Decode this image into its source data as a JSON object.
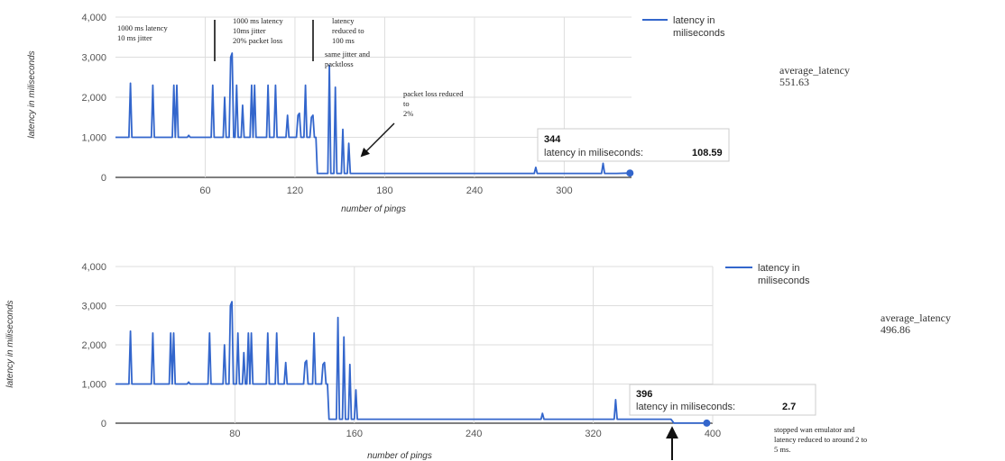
{
  "chart_data": [
    {
      "type": "line",
      "xlabel": "number of pings",
      "ylabel": "latency in miliseconds",
      "xlim": [
        0,
        345
      ],
      "ylim": [
        0,
        4000
      ],
      "x_ticks": [
        60,
        120,
        180,
        240,
        300
      ],
      "y_ticks": [
        0,
        1000,
        2000,
        3000,
        4000
      ],
      "y_tick_labels": [
        "0",
        "1,000",
        "2,000",
        "3,000",
        "4,000"
      ],
      "grid": true,
      "legend_position": "top-right",
      "color": "#3366cc",
      "series": [
        {
          "name": "latency in miliseconds",
          "points": [
            [
              0,
              1000
            ],
            [
              9,
              1000
            ],
            [
              10,
              2350
            ],
            [
              11,
              1000
            ],
            [
              24,
              1000
            ],
            [
              25,
              2300
            ],
            [
              26,
              1000
            ],
            [
              38,
              1000
            ],
            [
              39,
              2300
            ],
            [
              40,
              1000
            ],
            [
              41,
              2300
            ],
            [
              42,
              1000
            ],
            [
              48,
              1000
            ],
            [
              49,
              1050
            ],
            [
              50,
              1000
            ],
            [
              64,
              1000
            ],
            [
              65,
              2300
            ],
            [
              66,
              1000
            ],
            [
              72,
              1000
            ],
            [
              73,
              2000
            ],
            [
              74,
              1000
            ],
            [
              76,
              1000
            ],
            [
              77,
              3000
            ],
            [
              78,
              3100
            ],
            [
              79,
              1000
            ],
            [
              80,
              1000
            ],
            [
              81,
              2300
            ],
            [
              82,
              1000
            ],
            [
              84,
              1000
            ],
            [
              85,
              1800
            ],
            [
              86,
              1000
            ],
            [
              90,
              1000
            ],
            [
              91,
              2300
            ],
            [
              92,
              1000
            ],
            [
              93,
              2300
            ],
            [
              94,
              1000
            ],
            [
              101,
              1000
            ],
            [
              102,
              2300
            ],
            [
              103,
              1000
            ],
            [
              106,
              1000
            ],
            [
              107,
              2300
            ],
            [
              108,
              1000
            ],
            [
              114,
              1000
            ],
            [
              115,
              1550
            ],
            [
              116,
              1000
            ],
            [
              121,
              1000
            ],
            [
              122,
              1550
            ],
            [
              123,
              1600
            ],
            [
              124,
              1000
            ],
            [
              126,
              1000
            ],
            [
              127,
              2300
            ],
            [
              128,
              1000
            ],
            [
              130,
              1000
            ],
            [
              131,
              1500
            ],
            [
              132,
              1550
            ],
            [
              133,
              1000
            ],
            [
              134,
              1000
            ],
            [
              135,
              100
            ],
            [
              142,
              100
            ],
            [
              143,
              2800
            ],
            [
              144,
              100
            ],
            [
              146,
              100
            ],
            [
              147,
              2250
            ],
            [
              148,
              100
            ],
            [
              151,
              100
            ],
            [
              152,
              1200
            ],
            [
              153,
              100
            ],
            [
              155,
              100
            ],
            [
              156,
              850
            ],
            [
              157,
              100
            ],
            [
              280,
              100
            ],
            [
              281,
              250
            ],
            [
              282,
              100
            ],
            [
              325,
              100
            ],
            [
              326,
              350
            ],
            [
              327,
              100
            ],
            [
              335,
              100
            ],
            [
              344,
              108.59
            ]
          ]
        }
      ],
      "annotations": [
        "1000 ms latency 10 ms jitter",
        "1000 ms latency 10ms jitter 20% packet loss",
        "latency reduced to 100 ms same jitter and packtloss",
        "packet loss reduced to 2%"
      ],
      "tooltip": {
        "title": "344",
        "label": "latency in miliseconds:",
        "value": "108.59"
      },
      "side_label": "average_latency",
      "side_value": "551.63"
    },
    {
      "type": "line",
      "xlabel": "number of pings",
      "ylabel": "latency in miliseconds",
      "xlim": [
        0,
        400
      ],
      "ylim": [
        0,
        4000
      ],
      "x_ticks": [
        80,
        160,
        240,
        320,
        400
      ],
      "y_ticks": [
        0,
        1000,
        2000,
        3000,
        4000
      ],
      "y_tick_labels": [
        "0",
        "1,000",
        "2,000",
        "3,000",
        "4,000"
      ],
      "grid": true,
      "legend_position": "top-right",
      "color": "#3366cc",
      "series": [
        {
          "name": "latency in miliseconds",
          "points": [
            [
              0,
              1000
            ],
            [
              9,
              1000
            ],
            [
              10,
              2350
            ],
            [
              11,
              1000
            ],
            [
              24,
              1000
            ],
            [
              25,
              2300
            ],
            [
              26,
              1000
            ],
            [
              36,
              1000
            ],
            [
              37,
              2300
            ],
            [
              38,
              1000
            ],
            [
              39,
              2300
            ],
            [
              40,
              1000
            ],
            [
              48,
              1000
            ],
            [
              49,
              1050
            ],
            [
              50,
              1000
            ],
            [
              62,
              1000
            ],
            [
              63,
              2300
            ],
            [
              64,
              1000
            ],
            [
              72,
              1000
            ],
            [
              73,
              2000
            ],
            [
              74,
              1000
            ],
            [
              76,
              1000
            ],
            [
              77,
              3000
            ],
            [
              78,
              3100
            ],
            [
              79,
              1000
            ],
            [
              81,
              1000
            ],
            [
              82,
              2300
            ],
            [
              83,
              1000
            ],
            [
              85,
              1000
            ],
            [
              86,
              1800
            ],
            [
              87,
              1000
            ],
            [
              88,
              1000
            ],
            [
              89,
              2300
            ],
            [
              90,
              1000
            ],
            [
              91,
              2300
            ],
            [
              92,
              1000
            ],
            [
              101,
              1000
            ],
            [
              102,
              2300
            ],
            [
              103,
              1000
            ],
            [
              107,
              1000
            ],
            [
              108,
              2300
            ],
            [
              109,
              1000
            ],
            [
              113,
              1000
            ],
            [
              114,
              1550
            ],
            [
              115,
              1000
            ],
            [
              126,
              1000
            ],
            [
              127,
              1550
            ],
            [
              128,
              1600
            ],
            [
              129,
              1000
            ],
            [
              132,
              1000
            ],
            [
              133,
              2300
            ],
            [
              134,
              1000
            ],
            [
              138,
              1000
            ],
            [
              139,
              1500
            ],
            [
              140,
              1550
            ],
            [
              141,
              1000
            ],
            [
              142,
              1000
            ],
            [
              143,
              100
            ],
            [
              148,
              100
            ],
            [
              149,
              2700
            ],
            [
              150,
              100
            ],
            [
              152,
              100
            ],
            [
              153,
              2200
            ],
            [
              154,
              100
            ],
            [
              156,
              100
            ],
            [
              157,
              1500
            ],
            [
              158,
              100
            ],
            [
              160,
              100
            ],
            [
              161,
              850
            ],
            [
              162,
              100
            ],
            [
              285,
              100
            ],
            [
              286,
              250
            ],
            [
              287,
              100
            ],
            [
              334,
              100
            ],
            [
              335,
              600
            ],
            [
              336,
              100
            ],
            [
              372,
              100
            ],
            [
              374,
              2.7
            ],
            [
              396,
              2.7
            ]
          ]
        }
      ],
      "annotations": [
        "stopped wan emulator and latency reduced to around 2 to 5 ms."
      ],
      "tooltip": {
        "title": "396",
        "label": "latency in miliseconds:",
        "value": "2.7"
      },
      "side_label": "average_latency",
      "side_value": "496.86"
    }
  ]
}
